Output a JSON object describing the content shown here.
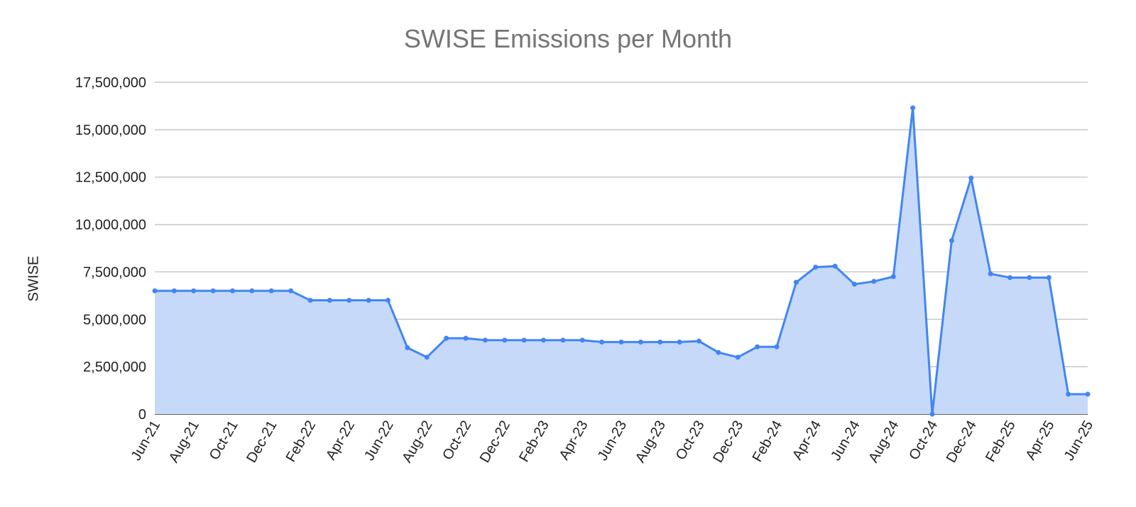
{
  "chart_data": {
    "type": "area",
    "title": "SWISE Emissions per Month",
    "xlabel": "",
    "ylabel": "SWISE",
    "ylim": [
      0,
      17500000
    ],
    "yticks": [
      0,
      2500000,
      5000000,
      7500000,
      10000000,
      12500000,
      15000000,
      17500000
    ],
    "ytick_labels": [
      "0",
      "2,500,000",
      "5,000,000",
      "7,500,000",
      "10,000,000",
      "12,500,000",
      "15,000,000",
      "17,500,000"
    ],
    "xtick_labels": [
      "Jun-21",
      "Aug-21",
      "Oct-21",
      "Dec-21",
      "Feb-22",
      "Apr-22",
      "Jun-22",
      "Aug-22",
      "Oct-22",
      "Dec-22",
      "Feb-23",
      "Apr-23",
      "Jun-23",
      "Aug-23",
      "Oct-23",
      "Dec-23",
      "Feb-24",
      "Apr-24",
      "Jun-24",
      "Aug-24",
      "Oct-24",
      "Dec-24",
      "Feb-25",
      "Apr-25",
      "Jun-25"
    ],
    "x": [
      "Jun-21",
      "Jul-21",
      "Aug-21",
      "Sep-21",
      "Oct-21",
      "Nov-21",
      "Dec-21",
      "Jan-22",
      "Feb-22",
      "Mar-22",
      "Apr-22",
      "May-22",
      "Jun-22",
      "Jul-22",
      "Aug-22",
      "Sep-22",
      "Oct-22",
      "Nov-22",
      "Dec-22",
      "Jan-23",
      "Feb-23",
      "Mar-23",
      "Apr-23",
      "May-23",
      "Jun-23",
      "Jul-23",
      "Aug-23",
      "Sep-23",
      "Oct-23",
      "Nov-23",
      "Dec-23",
      "Jan-24",
      "Feb-24",
      "Mar-24",
      "Apr-24",
      "May-24",
      "Jun-24",
      "Jul-24",
      "Aug-24",
      "Sep-24",
      "Oct-24",
      "Nov-24",
      "Dec-24",
      "Jan-25",
      "Feb-25",
      "Mar-25",
      "Apr-25",
      "May-25",
      "Jun-25"
    ],
    "series": [
      {
        "values": [
          6500000,
          6500000,
          6500000,
          6500000,
          6500000,
          6500000,
          6500000,
          6500000,
          6000000,
          6000000,
          6000000,
          6000000,
          6000000,
          3500000,
          3000000,
          4000000,
          4000000,
          3900000,
          3900000,
          3900000,
          3900000,
          3900000,
          3900000,
          3800000,
          3800000,
          3800000,
          3800000,
          3800000,
          3850000,
          3250000,
          3000000,
          3550000,
          3550000,
          6950000,
          7750000,
          7800000,
          6850000,
          7000000,
          7250000,
          16150000,
          0,
          9150000,
          12450000,
          7400000,
          7200000,
          7200000,
          7200000,
          1050000,
          1050000
        ]
      }
    ],
    "grid": true,
    "colors": {
      "line": "#4285f4",
      "fill": "#c6d9f9",
      "grid": "#c8c8c8",
      "axis": "#333333"
    }
  }
}
